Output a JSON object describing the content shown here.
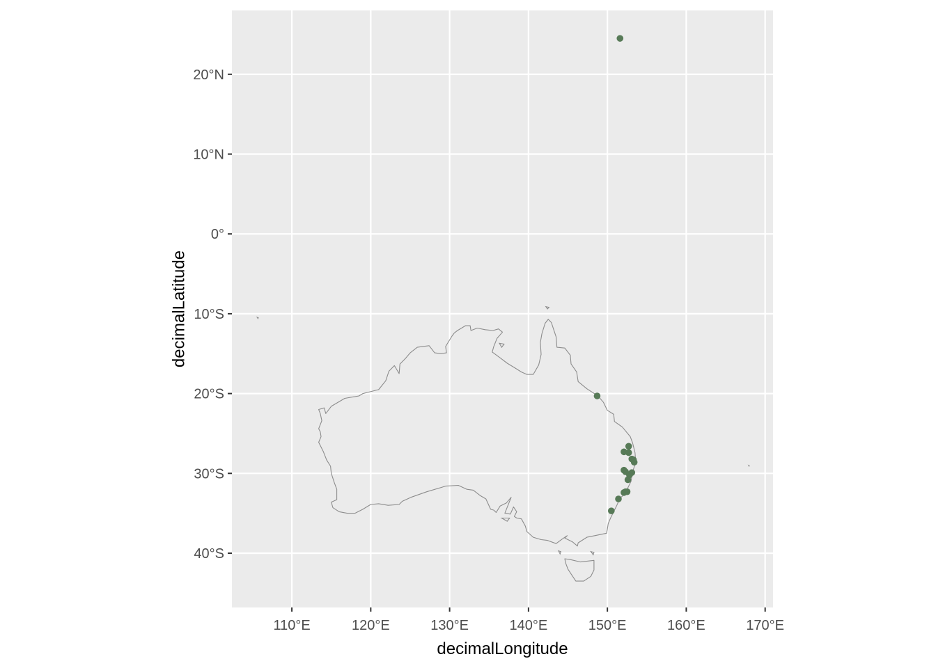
{
  "chart_data": {
    "type": "scatter",
    "title": "",
    "xlabel": "decimalLongitude",
    "ylabel": "decimalLatitude",
    "xlim": [
      102.4,
      171.0
    ],
    "ylim": [
      -46.8,
      28.0
    ],
    "x_ticks": [
      110,
      120,
      130,
      140,
      150,
      160,
      170
    ],
    "x_tick_labels": [
      "110°E",
      "120°E",
      "130°E",
      "140°E",
      "150°E",
      "160°E",
      "170°E"
    ],
    "y_ticks": [
      20,
      10,
      0,
      -10,
      -20,
      -30,
      -40
    ],
    "y_tick_labels": [
      "20°N",
      "10°N",
      "0°",
      "10°S",
      "20°S",
      "30°S",
      "40°S"
    ],
    "grid": true,
    "legend": "none",
    "colors": {
      "panel_background": "#ebebeb",
      "grid_line": "#ffffff",
      "coastline": "#8c8c8c",
      "point_fill": "#577a57",
      "tick_text": "#4d4d4d",
      "axis_title_text": "#000000"
    },
    "basemap": {
      "name": "Australia coastline",
      "mainland": [
        [
          113.4,
          -22.0
        ],
        [
          114.1,
          -21.8
        ],
        [
          114.3,
          -22.5
        ],
        [
          115.0,
          -21.6
        ],
        [
          116.7,
          -20.6
        ],
        [
          118.5,
          -20.3
        ],
        [
          119.0,
          -20.0
        ],
        [
          121.0,
          -19.5
        ],
        [
          121.9,
          -18.4
        ],
        [
          122.3,
          -17.2
        ],
        [
          123.0,
          -16.5
        ],
        [
          123.6,
          -17.5
        ],
        [
          123.7,
          -16.3
        ],
        [
          124.4,
          -15.6
        ],
        [
          125.0,
          -14.9
        ],
        [
          125.9,
          -14.2
        ],
        [
          126.6,
          -14.1
        ],
        [
          127.4,
          -14.0
        ],
        [
          128.1,
          -14.9
        ],
        [
          128.9,
          -15.0
        ],
        [
          129.6,
          -14.9
        ],
        [
          129.5,
          -14.1
        ],
        [
          130.3,
          -12.8
        ],
        [
          130.6,
          -12.4
        ],
        [
          131.0,
          -12.1
        ],
        [
          132.0,
          -11.5
        ],
        [
          132.6,
          -11.5
        ],
        [
          132.7,
          -12.1
        ],
        [
          133.5,
          -11.8
        ],
        [
          134.5,
          -12.0
        ],
        [
          135.5,
          -12.1
        ],
        [
          136.2,
          -11.9
        ],
        [
          136.7,
          -12.3
        ],
        [
          136.0,
          -13.1
        ],
        [
          135.6,
          -14.1
        ],
        [
          135.4,
          -14.8
        ],
        [
          136.5,
          -15.6
        ],
        [
          137.3,
          -16.2
        ],
        [
          138.3,
          -16.8
        ],
        [
          139.1,
          -17.3
        ],
        [
          139.8,
          -17.6
        ],
        [
          140.6,
          -17.6
        ],
        [
          141.3,
          -16.4
        ],
        [
          141.6,
          -15.1
        ],
        [
          141.5,
          -13.6
        ],
        [
          141.7,
          -12.5
        ],
        [
          142.1,
          -11.2
        ],
        [
          142.5,
          -10.7
        ],
        [
          142.9,
          -11.1
        ],
        [
          143.2,
          -12.0
        ],
        [
          143.5,
          -12.9
        ],
        [
          143.6,
          -14.2
        ],
        [
          144.6,
          -14.3
        ],
        [
          145.3,
          -15.2
        ],
        [
          145.4,
          -16.3
        ],
        [
          146.1,
          -17.3
        ],
        [
          146.3,
          -18.5
        ],
        [
          147.4,
          -19.4
        ],
        [
          148.8,
          -20.3
        ],
        [
          149.5,
          -21.1
        ],
        [
          150.0,
          -22.1
        ],
        [
          150.8,
          -22.6
        ],
        [
          150.9,
          -23.5
        ],
        [
          151.9,
          -24.2
        ],
        [
          152.9,
          -25.4
        ],
        [
          153.2,
          -26.2
        ],
        [
          153.5,
          -27.4
        ],
        [
          153.6,
          -28.6
        ],
        [
          153.3,
          -29.5
        ],
        [
          153.1,
          -30.3
        ],
        [
          153.0,
          -31.0
        ],
        [
          152.6,
          -31.8
        ],
        [
          152.3,
          -32.5
        ],
        [
          151.6,
          -33.1
        ],
        [
          151.2,
          -34.0
        ],
        [
          150.8,
          -34.8
        ],
        [
          150.4,
          -35.6
        ],
        [
          150.1,
          -36.3
        ],
        [
          150.0,
          -37.0
        ],
        [
          149.9,
          -37.5
        ],
        [
          148.4,
          -37.8
        ],
        [
          147.4,
          -38.0
        ],
        [
          146.3,
          -38.7
        ],
        [
          146.2,
          -39.1
        ],
        [
          145.6,
          -38.6
        ],
        [
          145.0,
          -38.3
        ],
        [
          144.6,
          -38.1
        ],
        [
          144.9,
          -37.8
        ],
        [
          144.3,
          -38.2
        ],
        [
          143.5,
          -38.8
        ],
        [
          142.4,
          -38.4
        ],
        [
          141.6,
          -38.3
        ],
        [
          140.6,
          -38.0
        ],
        [
          139.8,
          -37.3
        ],
        [
          139.6,
          -36.6
        ],
        [
          139.1,
          -35.7
        ],
        [
          138.5,
          -35.6
        ],
        [
          138.2,
          -35.4
        ],
        [
          138.5,
          -34.8
        ],
        [
          138.1,
          -34.2
        ],
        [
          137.7,
          -35.1
        ],
        [
          137.0,
          -35.0
        ],
        [
          137.8,
          -33.0
        ],
        [
          137.2,
          -33.7
        ],
        [
          136.4,
          -34.1
        ],
        [
          135.9,
          -34.9
        ],
        [
          135.6,
          -34.6
        ],
        [
          135.2,
          -34.5
        ],
        [
          134.6,
          -33.2
        ],
        [
          133.9,
          -32.8
        ],
        [
          133.0,
          -32.1
        ],
        [
          132.2,
          -32.0
        ],
        [
          131.1,
          -31.5
        ],
        [
          129.5,
          -31.6
        ],
        [
          127.1,
          -32.3
        ],
        [
          125.1,
          -33.0
        ],
        [
          124.0,
          -33.5
        ],
        [
          123.6,
          -33.9
        ],
        [
          122.2,
          -34.0
        ],
        [
          121.0,
          -33.8
        ],
        [
          120.0,
          -33.9
        ],
        [
          119.0,
          -34.5
        ],
        [
          118.0,
          -35.0
        ],
        [
          117.0,
          -35.0
        ],
        [
          116.0,
          -34.8
        ],
        [
          115.2,
          -34.3
        ],
        [
          115.0,
          -33.6
        ],
        [
          115.7,
          -33.3
        ],
        [
          115.7,
          -32.0
        ],
        [
          115.4,
          -31.2
        ],
        [
          115.0,
          -30.0
        ],
        [
          114.9,
          -29.1
        ],
        [
          114.4,
          -28.3
        ],
        [
          114.0,
          -27.3
        ],
        [
          113.4,
          -26.1
        ],
        [
          113.7,
          -25.4
        ],
        [
          113.6,
          -24.8
        ],
        [
          113.4,
          -24.4
        ],
        [
          113.8,
          -23.4
        ],
        [
          113.6,
          -22.5
        ],
        [
          113.4,
          -22.0
        ]
      ],
      "tasmania": [
        [
          144.6,
          -40.7
        ],
        [
          145.3,
          -40.8
        ],
        [
          146.6,
          -41.1
        ],
        [
          148.3,
          -40.9
        ],
        [
          148.3,
          -42.1
        ],
        [
          147.9,
          -42.9
        ],
        [
          147.0,
          -43.5
        ],
        [
          146.0,
          -43.5
        ],
        [
          145.4,
          -42.6
        ],
        [
          145.0,
          -42.0
        ],
        [
          144.7,
          -41.2
        ],
        [
          144.6,
          -40.7
        ]
      ],
      "islands": [
        [
          [
            105.6,
            -10.45
          ],
          [
            105.75,
            -10.5
          ],
          [
            105.7,
            -10.6
          ],
          [
            105.6,
            -10.45
          ]
        ],
        [
          [
            167.9,
            -29.0
          ],
          [
            168.0,
            -29.05
          ],
          [
            167.95,
            -29.1
          ],
          [
            167.9,
            -29.0
          ]
        ],
        [
          [
            143.8,
            -39.7
          ],
          [
            144.1,
            -39.8
          ],
          [
            144.0,
            -40.1
          ],
          [
            143.8,
            -39.7
          ]
        ],
        [
          [
            147.9,
            -39.8
          ],
          [
            148.3,
            -39.9
          ],
          [
            148.2,
            -40.2
          ],
          [
            147.9,
            -39.8
          ]
        ],
        [
          [
            136.6,
            -35.6
          ],
          [
            137.6,
            -35.6
          ],
          [
            137.3,
            -36.0
          ],
          [
            136.6,
            -35.6
          ]
        ],
        [
          [
            142.2,
            -9.1
          ],
          [
            142.6,
            -9.2
          ],
          [
            142.4,
            -9.4
          ],
          [
            142.2,
            -9.1
          ]
        ],
        [
          [
            136.3,
            -13.7
          ],
          [
            136.9,
            -13.8
          ],
          [
            136.6,
            -14.2
          ],
          [
            136.3,
            -13.7
          ]
        ]
      ]
    },
    "series": [
      {
        "points": [
          {
            "x": 151.6,
            "y": 24.5
          },
          {
            "x": 148.7,
            "y": -20.3
          },
          {
            "x": 152.7,
            "y": -26.6
          },
          {
            "x": 152.1,
            "y": -27.3
          },
          {
            "x": 152.7,
            "y": -27.4
          },
          {
            "x": 153.1,
            "y": -28.2
          },
          {
            "x": 153.3,
            "y": -28.3
          },
          {
            "x": 153.4,
            "y": -28.6
          },
          {
            "x": 152.1,
            "y": -29.6
          },
          {
            "x": 152.3,
            "y": -29.8
          },
          {
            "x": 153.1,
            "y": -29.9
          },
          {
            "x": 152.8,
            "y": -30.2
          },
          {
            "x": 152.6,
            "y": -30.8
          },
          {
            "x": 152.3,
            "y": -32.3
          },
          {
            "x": 152.1,
            "y": -32.4
          },
          {
            "x": 152.5,
            "y": -32.3
          },
          {
            "x": 151.4,
            "y": -33.2
          },
          {
            "x": 150.5,
            "y": -34.7
          }
        ]
      }
    ]
  }
}
